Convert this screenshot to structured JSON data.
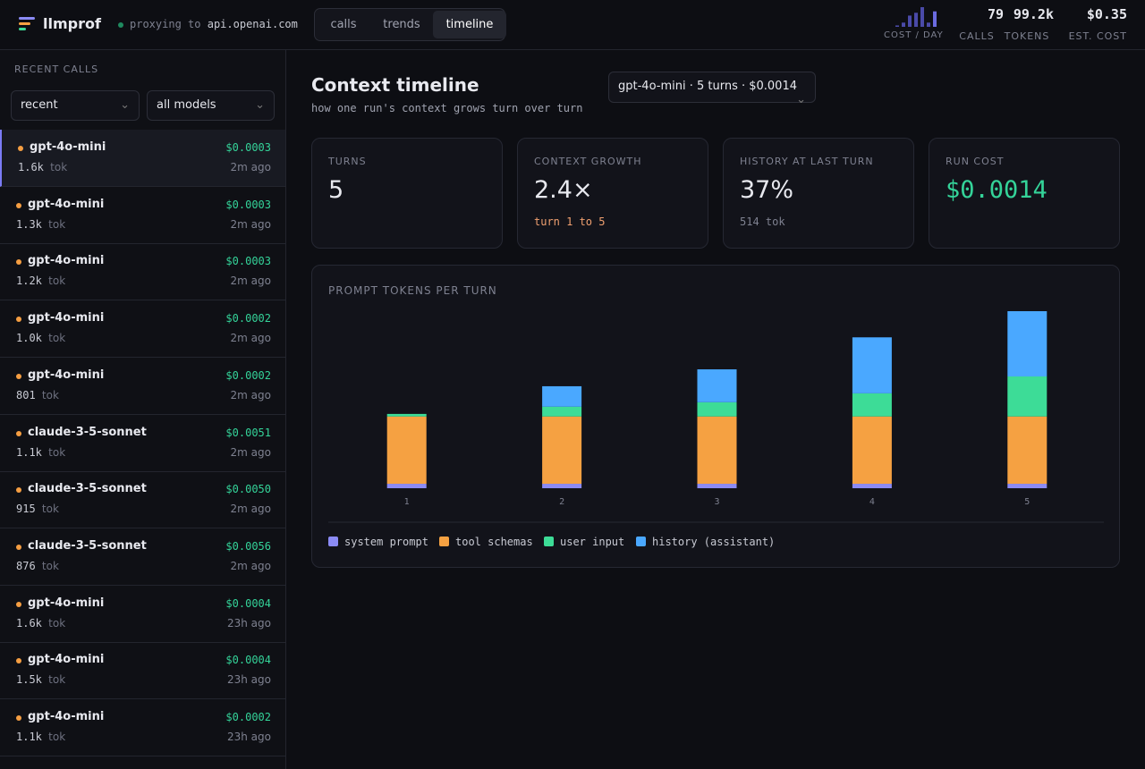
{
  "header": {
    "logo": "llmprof",
    "proxy_label": "proxying to",
    "proxy_host": "api.openai.com",
    "tabs": [
      "calls",
      "trends",
      "timeline"
    ],
    "cost_per_day": [
      1,
      3,
      8,
      10,
      14,
      3,
      11
    ],
    "cost_per_day_label": "COST / DAY",
    "stats": [
      {
        "value": "79",
        "label": "CALLS"
      },
      {
        "value": "99.2k",
        "label": "TOKENS"
      },
      {
        "value": "$0.35",
        "label": "EST. COST"
      }
    ]
  },
  "sidebar": {
    "title": "RECENT CALLS",
    "filters": [
      "recent",
      "all models"
    ],
    "unit": "tok",
    "calls": [
      {
        "model": "gpt-4o-mini",
        "cost": "$0.0003",
        "tokens": "1.6k",
        "age": "2m ago"
      },
      {
        "model": "gpt-4o-mini",
        "cost": "$0.0003",
        "tokens": "1.3k",
        "age": "2m ago"
      },
      {
        "model": "gpt-4o-mini",
        "cost": "$0.0003",
        "tokens": "1.2k",
        "age": "2m ago"
      },
      {
        "model": "gpt-4o-mini",
        "cost": "$0.0002",
        "tokens": "1.0k",
        "age": "2m ago"
      },
      {
        "model": "gpt-4o-mini",
        "cost": "$0.0002",
        "tokens": "801",
        "age": "2m ago"
      },
      {
        "model": "claude-3-5-sonnet",
        "cost": "$0.0051",
        "tokens": "1.1k",
        "age": "2m ago"
      },
      {
        "model": "claude-3-5-sonnet",
        "cost": "$0.0050",
        "tokens": "915",
        "age": "2m ago"
      },
      {
        "model": "claude-3-5-sonnet",
        "cost": "$0.0056",
        "tokens": "876",
        "age": "2m ago"
      },
      {
        "model": "gpt-4o-mini",
        "cost": "$0.0004",
        "tokens": "1.6k",
        "age": "23h ago"
      },
      {
        "model": "gpt-4o-mini",
        "cost": "$0.0004",
        "tokens": "1.5k",
        "age": "23h ago"
      },
      {
        "model": "gpt-4o-mini",
        "cost": "$0.0002",
        "tokens": "1.1k",
        "age": "23h ago"
      }
    ]
  },
  "main": {
    "title": "Context timeline",
    "subtitle": "how one run's context grows turn over turn",
    "run_selector": "gpt-4o-mini · 5 turns · $0.0014",
    "cards": [
      {
        "label": "TURNS",
        "value": "5"
      },
      {
        "label": "CONTEXT GROWTH",
        "value": "2.4×",
        "sub": "turn 1 to 5"
      },
      {
        "label": "HISTORY AT LAST TURN",
        "value": "37%",
        "sub": "514 tok"
      },
      {
        "label": "RUN COST",
        "value": "$0.0014"
      }
    ]
  },
  "chart_data": {
    "type": "stacked_bar",
    "title": "PROMPT TOKENS PER TURN",
    "categories": [
      "1",
      "2",
      "3",
      "4",
      "5"
    ],
    "series": [
      {
        "name": "system prompt",
        "color": "#8b8bf5",
        "values": [
          35,
          35,
          35,
          35,
          35
        ]
      },
      {
        "name": "tool schemas",
        "color": "#f5a142",
        "values": [
          530,
          530,
          530,
          530,
          530
        ]
      },
      {
        "name": "user input",
        "color": "#3ddc97",
        "values": [
          20,
          77,
          112,
          182,
          315
        ]
      },
      {
        "name": "history (assistant)",
        "color": "#4aa8ff",
        "values": [
          0,
          161,
          259,
          441,
          514
        ]
      }
    ]
  }
}
